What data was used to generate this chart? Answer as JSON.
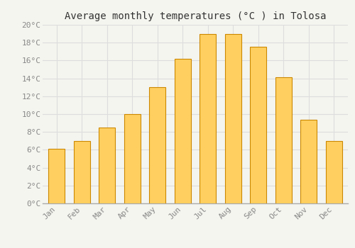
{
  "title": "Average monthly temperatures (°C ) in Tolosa",
  "months": [
    "Jan",
    "Feb",
    "Mar",
    "Apr",
    "May",
    "Jun",
    "Jul",
    "Aug",
    "Sep",
    "Oct",
    "Nov",
    "Dec"
  ],
  "values": [
    6.1,
    7.0,
    8.5,
    10.0,
    13.0,
    16.2,
    19.0,
    19.0,
    17.5,
    14.1,
    9.4,
    7.0
  ],
  "bar_color_top": "#FFA500",
  "bar_color_bottom": "#FFD060",
  "bar_edge_color": "#CC8800",
  "background_color": "#F5F5F0",
  "plot_bg_color": "#F5F5F0",
  "grid_color": "#DDDDDD",
  "ylim": [
    0,
    20
  ],
  "yticks": [
    0,
    2,
    4,
    6,
    8,
    10,
    12,
    14,
    16,
    18,
    20
  ],
  "title_fontsize": 10,
  "tick_fontsize": 8,
  "tick_font_color": "#888888",
  "title_color": "#333333",
  "font_family": "monospace",
  "bar_width": 0.65
}
